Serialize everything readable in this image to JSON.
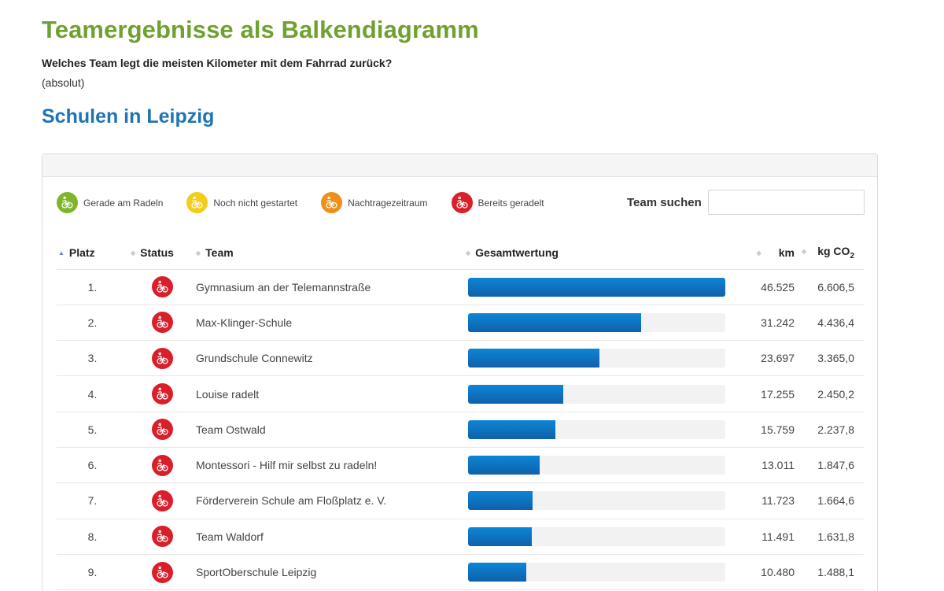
{
  "page": {
    "title": "Teamergebnisse als Balkendiagramm",
    "subtitle": "Welches Team legt die meisten Kilometer mit dem Fahrrad zurück?",
    "note": "(absolut)",
    "section": "Schulen in Leipzig"
  },
  "legend": [
    {
      "label": "Gerade am Radeln",
      "color": "#7fb52a",
      "icon": "bike-icon"
    },
    {
      "label": "Noch nicht gestartet",
      "color": "#f2cd1a",
      "icon": "bike-icon"
    },
    {
      "label": "Nachtragezeitraum",
      "color": "#ef8f17",
      "icon": "bike-icon"
    },
    {
      "label": "Bereits geradelt",
      "color": "#d81f2a",
      "icon": "bike-icon"
    }
  ],
  "search": {
    "label": "Team suchen",
    "value": "",
    "placeholder": ""
  },
  "table": {
    "headers": {
      "rank": "Platz",
      "status": "Status",
      "team": "Team",
      "score": "Gesamtwertung",
      "km": "km",
      "co2": "kg CO",
      "co2_sub": "2"
    },
    "sort_column": "rank",
    "max_km": 46525,
    "rows": [
      {
        "rank": "1.",
        "status": "Bereits geradelt",
        "team": "Gymnasium an der Telemannstraße",
        "km": "46.525",
        "km_value": 46525,
        "co2": "6.606,5"
      },
      {
        "rank": "2.",
        "status": "Bereits geradelt",
        "team": "Max-Klinger-Schule",
        "km": "31.242",
        "km_value": 31242,
        "co2": "4.436,4"
      },
      {
        "rank": "3.",
        "status": "Bereits geradelt",
        "team": "Grundschule Connewitz",
        "km": "23.697",
        "km_value": 23697,
        "co2": "3.365,0"
      },
      {
        "rank": "4.",
        "status": "Bereits geradelt",
        "team": "Louise radelt",
        "km": "17.255",
        "km_value": 17255,
        "co2": "2.450,2"
      },
      {
        "rank": "5.",
        "status": "Bereits geradelt",
        "team": "Team Ostwald",
        "km": "15.759",
        "km_value": 15759,
        "co2": "2.237,8"
      },
      {
        "rank": "6.",
        "status": "Bereits geradelt",
        "team": "Montessori - Hilf mir selbst zu radeln!",
        "km": "13.011",
        "km_value": 13011,
        "co2": "1.847,6"
      },
      {
        "rank": "7.",
        "status": "Bereits geradelt",
        "team": "Förderverein Schule am Floßplatz e. V.",
        "km": "11.723",
        "km_value": 11723,
        "co2": "1.664,6"
      },
      {
        "rank": "8.",
        "status": "Bereits geradelt",
        "team": "Team Waldorf",
        "km": "11.491",
        "km_value": 11491,
        "co2": "1.631,8"
      },
      {
        "rank": "9.",
        "status": "Bereits geradelt",
        "team": "SportOberschule Leipzig",
        "km": "10.480",
        "km_value": 10480,
        "co2": "1.488,1"
      }
    ]
  },
  "colors": {
    "title": "#6ea12f",
    "section": "#1f74b5",
    "bar": "#0c78c8",
    "status_done": "#d81f2a"
  }
}
